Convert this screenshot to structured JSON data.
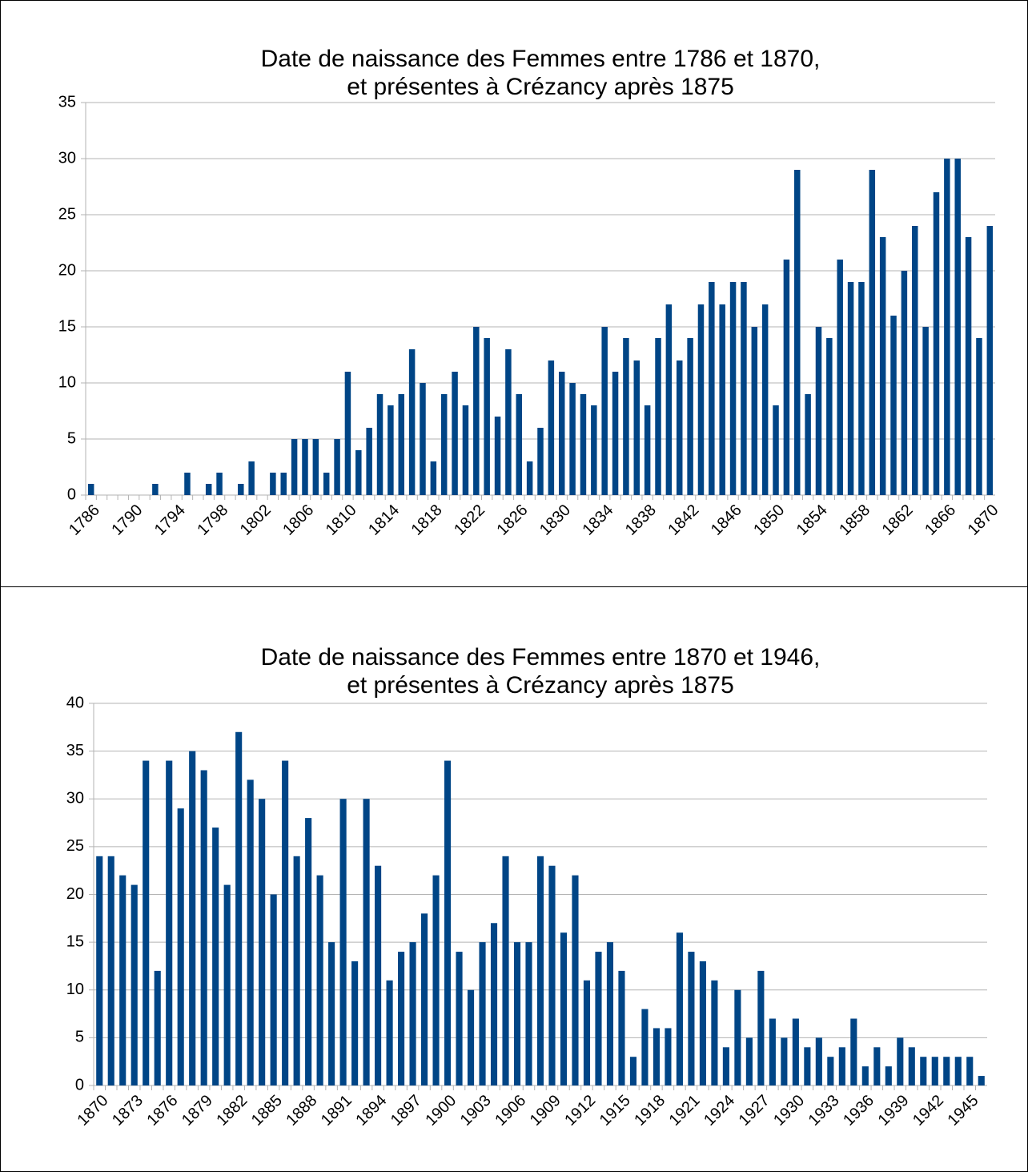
{
  "chart_data": [
    {
      "type": "bar",
      "title": [
        "Date de naissance des Femmes entre 1786 et 1870,",
        "et présentes à Crézancy après 1875"
      ],
      "categories": [
        "1786",
        null,
        null,
        null,
        "1790",
        null,
        null,
        null,
        "1794",
        null,
        null,
        null,
        "1798",
        null,
        null,
        null,
        "1802",
        null,
        null,
        null,
        "1806",
        null,
        null,
        null,
        "1810",
        null,
        null,
        null,
        "1814",
        null,
        null,
        null,
        "1818",
        null,
        null,
        null,
        "1822",
        null,
        null,
        null,
        "1826",
        null,
        null,
        null,
        "1830",
        null,
        null,
        null,
        "1834",
        null,
        null,
        null,
        "1838",
        null,
        null,
        null,
        "1842",
        null,
        null,
        null,
        "1846",
        null,
        null,
        null,
        "1850",
        null,
        null,
        null,
        "1854",
        null,
        null,
        null,
        "1858",
        null,
        null,
        null,
        "1862",
        null,
        null,
        null,
        "1866",
        null,
        null,
        null,
        "1870"
      ],
      "values": [
        1,
        0,
        0,
        0,
        0,
        0,
        1,
        0,
        0,
        2,
        0,
        1,
        2,
        0,
        1,
        3,
        0,
        2,
        2,
        5,
        5,
        5,
        2,
        5,
        11,
        4,
        6,
        9,
        8,
        9,
        13,
        10,
        3,
        9,
        11,
        8,
        15,
        14,
        7,
        13,
        9,
        3,
        6,
        12,
        11,
        10,
        9,
        8,
        15,
        11,
        14,
        12,
        8,
        14,
        17,
        12,
        14,
        17,
        19,
        17,
        19,
        19,
        15,
        17,
        8,
        21,
        29,
        9,
        15,
        14,
        21,
        19,
        19,
        29,
        23,
        16,
        20,
        24,
        15,
        27,
        30,
        30,
        23,
        14,
        24
      ],
      "color": "#004586",
      "ylim": [
        0,
        35
      ],
      "yticks": [
        0,
        5,
        10,
        15,
        20,
        25,
        30,
        35
      ],
      "grid": true
    },
    {
      "type": "bar",
      "title": [
        "Date de naissance des Femmes entre 1870 et 1946,",
        "et présentes à Crézancy après 1875"
      ],
      "categories": [
        "1870",
        null,
        null,
        "1873",
        null,
        null,
        "1876",
        null,
        null,
        "1879",
        null,
        null,
        "1882",
        null,
        null,
        "1885",
        null,
        null,
        "1888",
        null,
        null,
        "1891",
        null,
        null,
        "1894",
        null,
        null,
        "1897",
        null,
        null,
        "1900",
        null,
        null,
        "1903",
        null,
        null,
        "1906",
        null,
        null,
        "1909",
        null,
        null,
        "1912",
        null,
        null,
        "1915",
        null,
        null,
        "1918",
        null,
        null,
        "1921",
        null,
        null,
        "1924",
        null,
        null,
        "1927",
        null,
        null,
        "1930",
        null,
        null,
        "1933",
        null,
        null,
        "1936",
        null,
        null,
        "1939",
        null,
        null,
        "1942",
        null,
        null,
        "1945",
        null
      ],
      "values": [
        24,
        24,
        22,
        21,
        34,
        12,
        34,
        29,
        35,
        33,
        27,
        21,
        37,
        32,
        30,
        20,
        34,
        24,
        28,
        22,
        15,
        30,
        13,
        30,
        23,
        11,
        14,
        15,
        18,
        22,
        34,
        14,
        10,
        15,
        17,
        24,
        15,
        15,
        24,
        23,
        16,
        22,
        11,
        14,
        15,
        12,
        3,
        8,
        6,
        6,
        16,
        14,
        13,
        11,
        4,
        10,
        5,
        12,
        7,
        5,
        7,
        4,
        5,
        3,
        4,
        7,
        2,
        4,
        2,
        5,
        4,
        3,
        3,
        3,
        3,
        3,
        1
      ],
      "color": "#004586",
      "ylim": [
        0,
        40
      ],
      "yticks": [
        0,
        5,
        10,
        15,
        20,
        25,
        30,
        35,
        40
      ],
      "grid": true
    }
  ]
}
